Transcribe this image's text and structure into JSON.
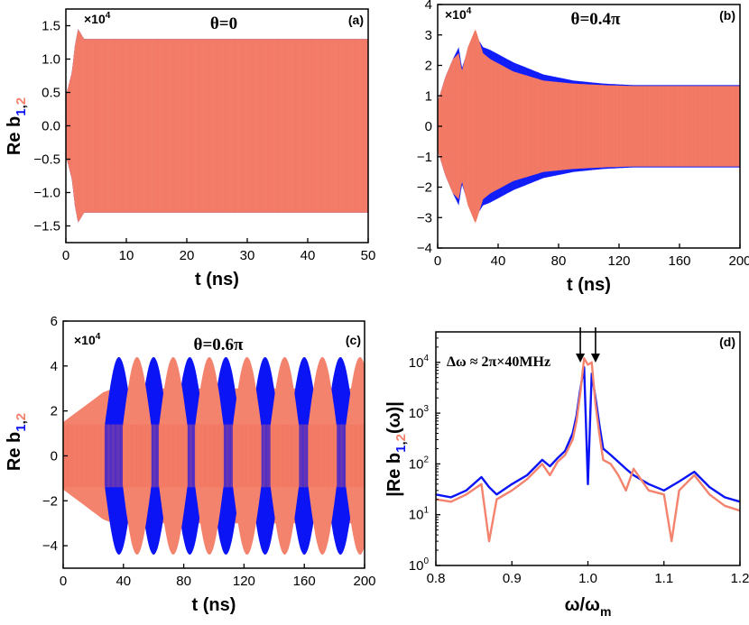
{
  "colors": {
    "series1": "#0a14f5",
    "series2": "#f4836e",
    "axis": "#000000"
  },
  "chart_data": [
    {
      "id": "a",
      "type": "line",
      "panel_tag": "(a)",
      "theta_label": "θ=0",
      "scale_note": "×10",
      "scale_exp": "4",
      "xlabel": "t (ns)",
      "ylabel_main": "Re b",
      "ylabel_sub_1": "1",
      "ylabel_sub_comma": ",",
      "ylabel_sub_2": "2",
      "xlim": [
        0,
        50
      ],
      "ylim": [
        -1.75,
        1.75
      ],
      "xticks": [
        0,
        10,
        20,
        30,
        40,
        50
      ],
      "yticks": [
        -1.5,
        -1.0,
        -0.5,
        0.0,
        0.5,
        1.0,
        1.5
      ],
      "ytick_labels": [
        "−1.5",
        "−1.0",
        "−0.5",
        "0.0",
        "0.5",
        "1.0",
        "1.5"
      ],
      "series": [
        {
          "color": "#0a14f5",
          "envelope_t": [
            0,
            1,
            1.5,
            2,
            2.5,
            3,
            50
          ],
          "envelope_amp": [
            0.45,
            0.8,
            1.2,
            1.45,
            1.38,
            1.3,
            1.3
          ]
        },
        {
          "color": "#f4836e",
          "envelope_t": [
            0,
            1,
            1.5,
            2,
            2.5,
            3,
            50
          ],
          "envelope_amp": [
            0.45,
            0.8,
            1.2,
            1.45,
            1.38,
            1.3,
            1.3
          ]
        }
      ]
    },
    {
      "id": "b",
      "type": "line",
      "panel_tag": "(b)",
      "theta_label": "θ=0.4π",
      "scale_note": "×10",
      "scale_exp": "4",
      "xlabel": "t (ns)",
      "xlim": [
        0,
        200
      ],
      "ylim": [
        -4,
        4
      ],
      "xticks": [
        0,
        40,
        80,
        120,
        160,
        200
      ],
      "yticks": [
        -4,
        -3,
        -2,
        -1,
        0,
        1,
        2,
        3,
        4
      ],
      "ytick_labels": [
        "−4",
        "−3",
        "−2",
        "−1",
        "0",
        "1",
        "2",
        "3",
        "4"
      ],
      "series": [
        {
          "color": "#0a14f5",
          "envelope_t": [
            0,
            5,
            10,
            14,
            16,
            20,
            25,
            30,
            35,
            50,
            70,
            90,
            110,
            130,
            200
          ],
          "envelope_amp": [
            0.8,
            1.6,
            2.2,
            2.6,
            1.9,
            2.5,
            3.0,
            2.6,
            2.5,
            2.1,
            1.7,
            1.5,
            1.4,
            1.35,
            1.35
          ]
        },
        {
          "color": "#f4836e",
          "envelope_t": [
            0,
            5,
            10,
            14,
            16,
            20,
            25,
            30,
            35,
            50,
            70,
            90,
            110,
            130,
            200
          ],
          "envelope_amp": [
            0.8,
            1.6,
            2.2,
            2.4,
            1.8,
            2.6,
            3.2,
            2.4,
            2.2,
            1.8,
            1.5,
            1.4,
            1.35,
            1.32,
            1.32
          ]
        }
      ]
    },
    {
      "id": "c",
      "type": "line",
      "panel_tag": "(c)",
      "theta_label": "θ=0.6π",
      "scale_note": "×10",
      "scale_exp": "4",
      "xlabel": "t (ns)",
      "ylabel_main": "Re b",
      "ylabel_sub_1": "1",
      "ylabel_sub_comma": ",",
      "ylabel_sub_2": "2",
      "xlim": [
        0,
        200
      ],
      "ylim": [
        -5,
        6
      ],
      "xticks": [
        0,
        40,
        80,
        120,
        160,
        200
      ],
      "yticks": [
        -4,
        -2,
        0,
        2,
        4,
        6
      ],
      "ytick_labels": [
        "−4",
        "−2",
        "0",
        "2",
        "4",
        "6"
      ],
      "blue_peaks_t": [
        37,
        60,
        84,
        108,
        134,
        160,
        184
      ],
      "red_peaks_t": [
        49,
        73,
        97,
        122,
        147,
        172,
        197
      ],
      "peak_amp": 4.4,
      "background_amp": 1.3,
      "series": [
        {
          "color": "#0a14f5"
        },
        {
          "color": "#f4836e"
        }
      ]
    },
    {
      "id": "d",
      "type": "line",
      "panel_tag": "(d)",
      "annotation": "Δω ≈ 2π×40MHz",
      "xlabel_main": "ω/ω",
      "xlabel_sub": "m",
      "ylabel_main": "|Re b",
      "ylabel_sub_1": "1",
      "ylabel_sub_comma": ",",
      "ylabel_sub_2": "2",
      "ylabel_tail": "(ω)|",
      "xlim": [
        0.8,
        1.2
      ],
      "ylim_log10": [
        0,
        4.6
      ],
      "yscale": "log",
      "xticks": [
        0.8,
        0.9,
        1.0,
        1.1,
        1.2
      ],
      "xtick_labels": [
        "0.8",
        "0.9",
        "1.0",
        "1.1",
        "1.2"
      ],
      "ytick_exponents": [
        0,
        1,
        2,
        3,
        4
      ],
      "ytick_base": "10",
      "arrows_x": [
        0.99,
        1.01
      ],
      "series": [
        {
          "color": "#0a14f5",
          "x": [
            0.8,
            0.82,
            0.84,
            0.86,
            0.87,
            0.88,
            0.9,
            0.92,
            0.94,
            0.95,
            0.96,
            0.97,
            0.98,
            0.985,
            0.99,
            0.995,
            1.0,
            1.005,
            1.01,
            1.015,
            1.02,
            1.03,
            1.04,
            1.05,
            1.06,
            1.08,
            1.1,
            1.12,
            1.14,
            1.16,
            1.18,
            1.2
          ],
          "y": [
            25,
            22,
            30,
            55,
            35,
            25,
            40,
            60,
            120,
            90,
            130,
            180,
            400,
            900,
            3000,
            8000,
            40,
            6000,
            2000,
            600,
            200,
            150,
            110,
            80,
            60,
            40,
            30,
            45,
            70,
            35,
            22,
            18
          ]
        },
        {
          "color": "#f4836e",
          "x": [
            0.8,
            0.82,
            0.84,
            0.86,
            0.87,
            0.88,
            0.9,
            0.92,
            0.94,
            0.95,
            0.96,
            0.97,
            0.98,
            0.985,
            0.99,
            0.995,
            1.0,
            1.005,
            1.01,
            1.015,
            1.02,
            1.03,
            1.04,
            1.05,
            1.06,
            1.08,
            1.1,
            1.11,
            1.12,
            1.14,
            1.16,
            1.18,
            1.2
          ],
          "y": [
            20,
            18,
            25,
            40,
            3,
            20,
            30,
            50,
            100,
            60,
            110,
            150,
            300,
            700,
            2500,
            12000,
            9000,
            10000,
            1500,
            400,
            120,
            100,
            60,
            30,
            80,
            30,
            25,
            3,
            30,
            60,
            25,
            15,
            12
          ]
        }
      ]
    }
  ]
}
